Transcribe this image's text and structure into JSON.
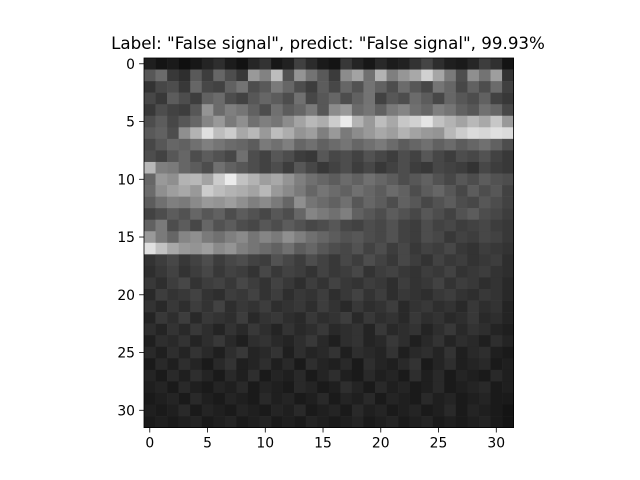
{
  "chart_data": {
    "type": "heatmap",
    "title": "Label: \"False signal\", predict: \"False signal\", 99.93%",
    "colormap": "gray",
    "grid": false,
    "rows": 32,
    "cols": 32,
    "x_ticks": [
      "0",
      "5",
      "10",
      "15",
      "20",
      "25",
      "30"
    ],
    "y_ticks": [
      "0",
      "5",
      "10",
      "15",
      "20",
      "25",
      "30"
    ],
    "x_tick_values": [
      0,
      5,
      10,
      15,
      20,
      25,
      30
    ],
    "y_tick_values": [
      0,
      5,
      10,
      15,
      20,
      25,
      30
    ],
    "xlim": [
      -0.5,
      31.5
    ],
    "ylim": [
      31.5,
      -0.5
    ],
    "values": [
      [
        12,
        8,
        10,
        6,
        9,
        14,
        18,
        11,
        7,
        15,
        20,
        9,
        13,
        25,
        17,
        10,
        8,
        22,
        14,
        9,
        16,
        11,
        13,
        20,
        27,
        18,
        12,
        10,
        15,
        24,
        19,
        8
      ],
      [
        34,
        42,
        22,
        18,
        35,
        24,
        40,
        30,
        22,
        60,
        51,
        74,
        32,
        58,
        45,
        35,
        23,
        55,
        64,
        44,
        70,
        50,
        59,
        66,
        82,
        65,
        48,
        30,
        56,
        45,
        62,
        20
      ],
      [
        20,
        28,
        30,
        22,
        40,
        28,
        26,
        38,
        45,
        30,
        35,
        48,
        40,
        30,
        24,
        36,
        28,
        40,
        32,
        45,
        38,
        30,
        42,
        34,
        28,
        46,
        40,
        28,
        38,
        30,
        42,
        25
      ],
      [
        28,
        22,
        36,
        30,
        24,
        38,
        42,
        30,
        26,
        34,
        40,
        36,
        30,
        44,
        28,
        34,
        40,
        30,
        38,
        45,
        26,
        34,
        30,
        42,
        36,
        28,
        40,
        34,
        30,
        38,
        26,
        22
      ],
      [
        22,
        30,
        26,
        24,
        34,
        58,
        42,
        50,
        46,
        38,
        30,
        44,
        36,
        40,
        48,
        34,
        55,
        60,
        42,
        46,
        38,
        48,
        52,
        44,
        40,
        50,
        46,
        38,
        34,
        44,
        40,
        28
      ],
      [
        30,
        36,
        28,
        34,
        40,
        52,
        60,
        48,
        56,
        44,
        50,
        46,
        55,
        64,
        72,
        68,
        80,
        92,
        70,
        60,
        74,
        66,
        78,
        82,
        90,
        76,
        70,
        64,
        72,
        66,
        78,
        60
      ],
      [
        35,
        38,
        30,
        56,
        70,
        88,
        74,
        80,
        66,
        72,
        60,
        74,
        68,
        58,
        62,
        50,
        60,
        48,
        55,
        60,
        66,
        62,
        70,
        64,
        60,
        58,
        72,
        80,
        86,
        84,
        88,
        86
      ],
      [
        28,
        34,
        40,
        38,
        44,
        50,
        46,
        42,
        40,
        36,
        48,
        44,
        50,
        40,
        44,
        38,
        42,
        46,
        40,
        44,
        48,
        42,
        36,
        40,
        44,
        38,
        42,
        36,
        40,
        44,
        38,
        30
      ],
      [
        30,
        26,
        34,
        40,
        30,
        36,
        32,
        28,
        44,
        30,
        26,
        34,
        30,
        24,
        22,
        34,
        28,
        30,
        26,
        32,
        28,
        24,
        30,
        26,
        34,
        28,
        24,
        30,
        28,
        32,
        26,
        22
      ],
      [
        72,
        50,
        48,
        40,
        36,
        30,
        44,
        38,
        34,
        30,
        26,
        30,
        24,
        34,
        28,
        22,
        26,
        30,
        24,
        28,
        22,
        26,
        30,
        24,
        22,
        28,
        26,
        24,
        20,
        28,
        24,
        22
      ],
      [
        40,
        60,
        56,
        70,
        72,
        64,
        80,
        92,
        76,
        70,
        62,
        66,
        58,
        50,
        44,
        40,
        36,
        42,
        38,
        44,
        40,
        36,
        30,
        34,
        38,
        32,
        28,
        34,
        30,
        36,
        32,
        30
      ],
      [
        42,
        56,
        62,
        66,
        60,
        80,
        74,
        70,
        68,
        64,
        72,
        60,
        54,
        48,
        40,
        46,
        42,
        38,
        44,
        40,
        36,
        42,
        38,
        30,
        36,
        40,
        34,
        28,
        36,
        30,
        34,
        26
      ],
      [
        36,
        44,
        50,
        48,
        54,
        60,
        58,
        62,
        56,
        50,
        54,
        48,
        40,
        56,
        46,
        42,
        38,
        44,
        34,
        40,
        36,
        30,
        38,
        34,
        28,
        32,
        36,
        30,
        28,
        34,
        30,
        26
      ],
      [
        26,
        30,
        36,
        32,
        40,
        34,
        38,
        30,
        36,
        32,
        28,
        34,
        30,
        40,
        52,
        48,
        44,
        50,
        38,
        34,
        30,
        36,
        32,
        28,
        34,
        30,
        26,
        32,
        36,
        30,
        28,
        24
      ],
      [
        38,
        48,
        30,
        36,
        28,
        40,
        32,
        36,
        30,
        28,
        34,
        30,
        36,
        32,
        28,
        30,
        34,
        28,
        26,
        30,
        28,
        32,
        26,
        24,
        30,
        26,
        28,
        24,
        26,
        28,
        24,
        22
      ],
      [
        60,
        48,
        40,
        52,
        56,
        48,
        44,
        50,
        54,
        46,
        52,
        48,
        56,
        50,
        44,
        40,
        36,
        32,
        34,
        30,
        28,
        32,
        26,
        24,
        30,
        28,
        22,
        26,
        24,
        28,
        26,
        22
      ],
      [
        88,
        76,
        66,
        60,
        58,
        62,
        54,
        58,
        50,
        46,
        42,
        38,
        44,
        36,
        40,
        34,
        30,
        28,
        32,
        26,
        30,
        24,
        28,
        22,
        26,
        24,
        28,
        22,
        20,
        24,
        22,
        20
      ],
      [
        20,
        24,
        28,
        22,
        26,
        30,
        24,
        28,
        30,
        26,
        24,
        32,
        28,
        24,
        30,
        26,
        22,
        28,
        24,
        30,
        26,
        22,
        28,
        24,
        20,
        26,
        22,
        24,
        20,
        22,
        24,
        18
      ],
      [
        18,
        22,
        26,
        20,
        24,
        28,
        22,
        26,
        24,
        20,
        28,
        22,
        26,
        24,
        20,
        26,
        22,
        24,
        28,
        20,
        24,
        26,
        22,
        20,
        24,
        22,
        26,
        20,
        22,
        24,
        20,
        18
      ],
      [
        22,
        18,
        24,
        28,
        20,
        24,
        26,
        22,
        28,
        24,
        20,
        26,
        22,
        18,
        24,
        20,
        26,
        22,
        20,
        24,
        22,
        18,
        24,
        20,
        22,
        26,
        20,
        24,
        22,
        18,
        20,
        16
      ],
      [
        16,
        24,
        20,
        22,
        26,
        20,
        18,
        24,
        22,
        26,
        20,
        24,
        18,
        22,
        20,
        24,
        18,
        22,
        26,
        20,
        24,
        18,
        22,
        20,
        18,
        22,
        24,
        20,
        18,
        22,
        20,
        16
      ],
      [
        20,
        16,
        22,
        18,
        24,
        20,
        26,
        18,
        22,
        20,
        24,
        18,
        20,
        22,
        18,
        24,
        20,
        16,
        22,
        18,
        20,
        24,
        16,
        20,
        22,
        18,
        20,
        16,
        22,
        18,
        20,
        14
      ],
      [
        14,
        22,
        18,
        24,
        16,
        22,
        20,
        18,
        24,
        16,
        20,
        22,
        18,
        16,
        22,
        18,
        20,
        24,
        16,
        22,
        18,
        20,
        16,
        22,
        18,
        20,
        16,
        18,
        22,
        16,
        18,
        14
      ],
      [
        18,
        14,
        20,
        16,
        22,
        18,
        14,
        20,
        16,
        22,
        18,
        14,
        20,
        16,
        18,
        22,
        16,
        18,
        20,
        14,
        22,
        16,
        18,
        20,
        14,
        18,
        22,
        16,
        20,
        18,
        14,
        12
      ],
      [
        12,
        18,
        16,
        20,
        14,
        18,
        22,
        16,
        12,
        18,
        20,
        16,
        14,
        18,
        22,
        16,
        12,
        18,
        20,
        14,
        16,
        22,
        18,
        12,
        16,
        20,
        14,
        18,
        16,
        12,
        18,
        14
      ],
      [
        16,
        12,
        18,
        14,
        20,
        16,
        12,
        18,
        22,
        14,
        16,
        20,
        12,
        18,
        14,
        16,
        20,
        12,
        18,
        16,
        14,
        20,
        12,
        16,
        18,
        14,
        20,
        12,
        16,
        18,
        12,
        10
      ],
      [
        10,
        16,
        12,
        18,
        14,
        10,
        16,
        20,
        12,
        14,
        18,
        12,
        16,
        10,
        18,
        14,
        12,
        16,
        10,
        18,
        14,
        12,
        16,
        20,
        10,
        14,
        18,
        12,
        14,
        16,
        10,
        12
      ],
      [
        14,
        10,
        16,
        12,
        18,
        14,
        10,
        16,
        12,
        18,
        10,
        14,
        12,
        16,
        10,
        14,
        18,
        12,
        10,
        16,
        12,
        14,
        10,
        18,
        12,
        16,
        10,
        14,
        12,
        10,
        16,
        12
      ],
      [
        12,
        14,
        10,
        16,
        12,
        10,
        14,
        12,
        16,
        10,
        14,
        12,
        10,
        16,
        14,
        10,
        12,
        18,
        14,
        10,
        16,
        12,
        14,
        10,
        12,
        16,
        10,
        12,
        14,
        16,
        10,
        12
      ],
      [
        10,
        12,
        14,
        10,
        16,
        12,
        10,
        14,
        12,
        10,
        16,
        12,
        14,
        10,
        12,
        16,
        10,
        14,
        12,
        16,
        10,
        14,
        12,
        10,
        16,
        12,
        14,
        10,
        12,
        14,
        10,
        10
      ],
      [
        12,
        10,
        12,
        16,
        10,
        14,
        12,
        10,
        14,
        12,
        10,
        14,
        12,
        16,
        10,
        12,
        14,
        10,
        16,
        12,
        14,
        10,
        12,
        14,
        10,
        12,
        16,
        10,
        14,
        12,
        10,
        8
      ],
      [
        10,
        12,
        10,
        12,
        14,
        10,
        12,
        14,
        10,
        12,
        14,
        10,
        12,
        10,
        14,
        12,
        10,
        12,
        14,
        10,
        12,
        14,
        10,
        12,
        14,
        10,
        12,
        10,
        12,
        14,
        10,
        8
      ]
    ]
  }
}
